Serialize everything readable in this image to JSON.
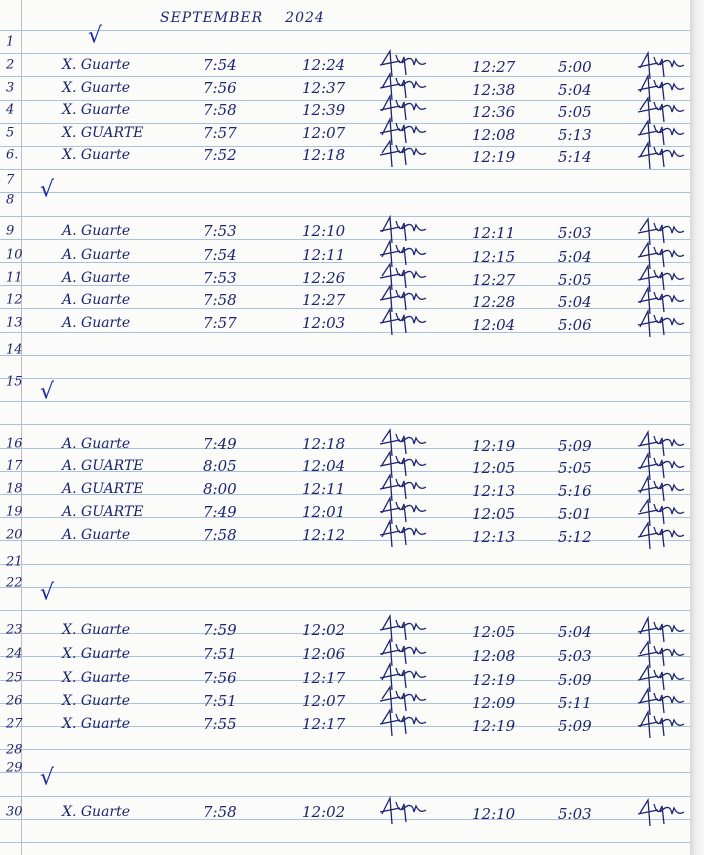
{
  "header": {
    "month": "SEPTEMBER",
    "year": "2024"
  },
  "rest_mark": "√",
  "rows": [
    {
      "day": "1",
      "rest": true
    },
    {
      "day": "2",
      "name": "X. Guarte",
      "time_in": "7:54",
      "lunch_out": "12:24",
      "lunch_in": "12:27",
      "time_out": "5:00"
    },
    {
      "day": "3",
      "name": "X. Guarte",
      "time_in": "7:56",
      "lunch_out": "12:37",
      "lunch_in": "12:38",
      "time_out": "5:04"
    },
    {
      "day": "4",
      "name": "X. Guarte",
      "time_in": "7:58",
      "lunch_out": "12:39",
      "lunch_in": "12:36",
      "time_out": "5:05"
    },
    {
      "day": "5",
      "name": "X. GUARTE",
      "time_in": "7:57",
      "lunch_out": "12:07",
      "lunch_in": "12:08",
      "time_out": "5:13"
    },
    {
      "day": "6.",
      "name": "X. Guarte",
      "time_in": "7:52",
      "lunch_out": "12:18",
      "lunch_in": "12:19",
      "time_out": "5:14"
    },
    {
      "day": "7",
      "rest": true
    },
    {
      "day": "8"
    },
    {
      "day": "9",
      "name": "A. Guarte",
      "time_in": "7:53",
      "lunch_out": "12:10",
      "lunch_in": "12:11",
      "time_out": "5:03"
    },
    {
      "day": "10",
      "name": "A. Guarte",
      "time_in": "7:54",
      "lunch_out": "12:11",
      "lunch_in": "12:15",
      "time_out": "5:04"
    },
    {
      "day": "11",
      "name": "A. Guarte",
      "time_in": "7:53",
      "lunch_out": "12:26",
      "lunch_in": "12:27",
      "time_out": "5:05"
    },
    {
      "day": "12",
      "name": "A. Guarte",
      "time_in": "7:58",
      "lunch_out": "12:27",
      "lunch_in": "12:28",
      "time_out": "5:04"
    },
    {
      "day": "13",
      "name": "A. Guarte",
      "time_in": "7:57",
      "lunch_out": "12:03",
      "lunch_in": "12:04",
      "time_out": "5:06"
    },
    {
      "day": "14"
    },
    {
      "day": "15",
      "rest": true
    },
    {
      "day": "16",
      "name": "A. Guarte",
      "time_in": "7:49",
      "lunch_out": "12:18",
      "lunch_in": "12:19",
      "time_out": "5:09"
    },
    {
      "day": "17",
      "name": "A. GUARTE",
      "time_in": "8:05",
      "lunch_out": "12:04",
      "lunch_in": "12:05",
      "time_out": "5:05"
    },
    {
      "day": "18",
      "name": "A. GUARTE",
      "time_in": "8:00",
      "lunch_out": "12:11",
      "lunch_in": "12:13",
      "time_out": "5:16"
    },
    {
      "day": "19",
      "name": "A. GUARTE",
      "time_in": "7:49",
      "lunch_out": "12:01",
      "lunch_in": "12:05",
      "time_out": "5:01"
    },
    {
      "day": "20",
      "name": "A. Guarte",
      "time_in": "7:58",
      "lunch_out": "12:12",
      "lunch_in": "12:13",
      "time_out": "5:12"
    },
    {
      "day": "21"
    },
    {
      "day": "22",
      "rest": true
    },
    {
      "day": "23",
      "name": "X. Guarte",
      "time_in": "7:59",
      "lunch_out": "12:02",
      "lunch_in": "12:05",
      "time_out": "5:04"
    },
    {
      "day": "24",
      "name": "X. Guarte",
      "time_in": "7:51",
      "lunch_out": "12:06",
      "lunch_in": "12:08",
      "time_out": "5:03"
    },
    {
      "day": "25",
      "name": "X. Guarte",
      "time_in": "7:56",
      "lunch_out": "12:17",
      "lunch_in": "12:19",
      "time_out": "5:09"
    },
    {
      "day": "26",
      "name": "X. Guarte",
      "time_in": "7:51",
      "lunch_out": "12:07",
      "lunch_in": "12:09",
      "time_out": "5:11"
    },
    {
      "day": "27",
      "name": "X. Guarte",
      "time_in": "7:55",
      "lunch_out": "12:17",
      "lunch_in": "12:19",
      "time_out": "5:09"
    },
    {
      "day": "28"
    },
    {
      "day": "29",
      "rest": true
    },
    {
      "day": "30",
      "name": "X. Guarte",
      "time_in": "7:58",
      "lunch_out": "12:02",
      "lunch_in": "12:10",
      "time_out": "5:03"
    }
  ]
}
